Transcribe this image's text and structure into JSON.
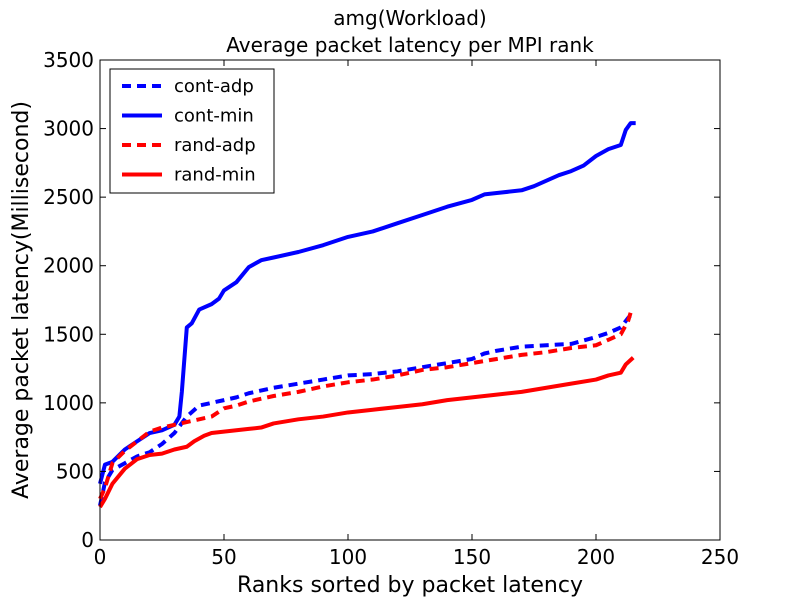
{
  "chart_data": {
    "type": "line",
    "title": "amg(Workload)",
    "subtitle": "Average packet latency per MPI rank",
    "xlabel": "Ranks sorted by packet latency",
    "ylabel": "Average packet latency(Millisecond)",
    "xlim": [
      0,
      250
    ],
    "ylim": [
      0,
      3500
    ],
    "xticks": [
      0,
      50,
      100,
      150,
      200,
      250
    ],
    "yticks": [
      0,
      500,
      1000,
      1500,
      2000,
      2500,
      3000,
      3500
    ],
    "grid": false,
    "legend_position": "top-left",
    "series": [
      {
        "name": "cont-adp",
        "color": "#0000ff",
        "style": "dashed",
        "points": [
          [
            0,
            250
          ],
          [
            2,
            420
          ],
          [
            5,
            510
          ],
          [
            10,
            560
          ],
          [
            15,
            610
          ],
          [
            20,
            640
          ],
          [
            25,
            700
          ],
          [
            30,
            780
          ],
          [
            35,
            900
          ],
          [
            40,
            980
          ],
          [
            45,
            1000
          ],
          [
            50,
            1020
          ],
          [
            55,
            1040
          ],
          [
            60,
            1070
          ],
          [
            70,
            1110
          ],
          [
            80,
            1140
          ],
          [
            90,
            1170
          ],
          [
            100,
            1200
          ],
          [
            110,
            1210
          ],
          [
            120,
            1230
          ],
          [
            130,
            1260
          ],
          [
            140,
            1290
          ],
          [
            150,
            1320
          ],
          [
            155,
            1360
          ],
          [
            160,
            1380
          ],
          [
            170,
            1410
          ],
          [
            180,
            1420
          ],
          [
            190,
            1430
          ],
          [
            200,
            1480
          ],
          [
            205,
            1510
          ],
          [
            210,
            1550
          ],
          [
            213,
            1620
          ],
          [
            214,
            1640
          ]
        ]
      },
      {
        "name": "cont-min",
        "color": "#0000ff",
        "style": "solid",
        "points": [
          [
            0,
            410
          ],
          [
            2,
            550
          ],
          [
            5,
            570
          ],
          [
            10,
            660
          ],
          [
            15,
            720
          ],
          [
            20,
            780
          ],
          [
            25,
            800
          ],
          [
            30,
            840
          ],
          [
            32,
            900
          ],
          [
            33,
            1080
          ],
          [
            35,
            1550
          ],
          [
            37,
            1580
          ],
          [
            40,
            1680
          ],
          [
            45,
            1720
          ],
          [
            48,
            1760
          ],
          [
            50,
            1820
          ],
          [
            55,
            1880
          ],
          [
            60,
            1990
          ],
          [
            65,
            2040
          ],
          [
            70,
            2060
          ],
          [
            80,
            2100
          ],
          [
            90,
            2150
          ],
          [
            100,
            2210
          ],
          [
            110,
            2250
          ],
          [
            120,
            2310
          ],
          [
            130,
            2370
          ],
          [
            140,
            2430
          ],
          [
            150,
            2480
          ],
          [
            155,
            2520
          ],
          [
            160,
            2530
          ],
          [
            170,
            2550
          ],
          [
            175,
            2580
          ],
          [
            180,
            2620
          ],
          [
            185,
            2660
          ],
          [
            190,
            2690
          ],
          [
            195,
            2730
          ],
          [
            200,
            2800
          ],
          [
            205,
            2850
          ],
          [
            210,
            2880
          ],
          [
            212,
            2990
          ],
          [
            214,
            3040
          ],
          [
            216,
            3040
          ]
        ]
      },
      {
        "name": "rand-adp",
        "color": "#ff0000",
        "style": "dashed",
        "points": [
          [
            0,
            300
          ],
          [
            2,
            380
          ],
          [
            5,
            560
          ],
          [
            10,
            650
          ],
          [
            15,
            720
          ],
          [
            20,
            790
          ],
          [
            25,
            820
          ],
          [
            30,
            840
          ],
          [
            35,
            860
          ],
          [
            40,
            880
          ],
          [
            45,
            900
          ],
          [
            50,
            960
          ],
          [
            55,
            980
          ],
          [
            60,
            1010
          ],
          [
            70,
            1050
          ],
          [
            80,
            1080
          ],
          [
            90,
            1120
          ],
          [
            100,
            1150
          ],
          [
            110,
            1170
          ],
          [
            120,
            1200
          ],
          [
            130,
            1240
          ],
          [
            140,
            1260
          ],
          [
            150,
            1290
          ],
          [
            160,
            1320
          ],
          [
            170,
            1350
          ],
          [
            180,
            1370
          ],
          [
            190,
            1400
          ],
          [
            200,
            1420
          ],
          [
            205,
            1460
          ],
          [
            210,
            1500
          ],
          [
            213,
            1600
          ],
          [
            214,
            1660
          ]
        ]
      },
      {
        "name": "rand-min",
        "color": "#ff0000",
        "style": "solid",
        "points": [
          [
            0,
            240
          ],
          [
            2,
            300
          ],
          [
            5,
            410
          ],
          [
            10,
            520
          ],
          [
            15,
            590
          ],
          [
            20,
            620
          ],
          [
            25,
            630
          ],
          [
            30,
            660
          ],
          [
            35,
            680
          ],
          [
            38,
            720
          ],
          [
            42,
            760
          ],
          [
            45,
            780
          ],
          [
            50,
            790
          ],
          [
            55,
            800
          ],
          [
            60,
            810
          ],
          [
            65,
            820
          ],
          [
            70,
            850
          ],
          [
            80,
            880
          ],
          [
            90,
            900
          ],
          [
            100,
            930
          ],
          [
            110,
            950
          ],
          [
            120,
            970
          ],
          [
            130,
            990
          ],
          [
            140,
            1020
          ],
          [
            150,
            1040
          ],
          [
            160,
            1060
          ],
          [
            170,
            1080
          ],
          [
            180,
            1110
          ],
          [
            190,
            1140
          ],
          [
            200,
            1170
          ],
          [
            205,
            1200
          ],
          [
            210,
            1220
          ],
          [
            212,
            1280
          ],
          [
            215,
            1330
          ]
        ]
      }
    ]
  }
}
